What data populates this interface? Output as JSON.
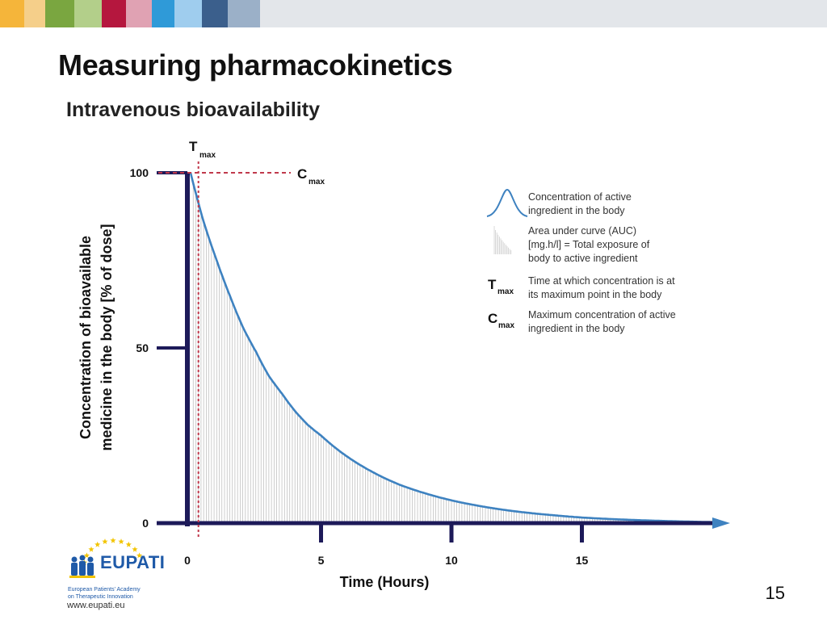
{
  "header": {
    "colors": [
      "#f5b53a",
      "#f5cf8a",
      "#7aa640",
      "#b3cf8a",
      "#b5173e",
      "#e0a2b3",
      "#2f9ad8",
      "#9fcdee",
      "#3b5f8c",
      "#9bb0c8",
      "#e3e6ea"
    ]
  },
  "slide": {
    "title": "Measuring pharmacokinetics",
    "subtitle": "Intravenous bioavailability",
    "page_number": "15"
  },
  "logo": {
    "name": "EUPATI",
    "line1": "European Patients' Academy",
    "line2": "on Therapeutic Innovation",
    "url": "www.eupati.eu",
    "star_color": "#f2c400",
    "brand_color": "#1f5aa8"
  },
  "chart_data": {
    "type": "area",
    "x": [
      0,
      0.5,
      1,
      1.5,
      2,
      2.5,
      3,
      3.5,
      4,
      4.5,
      5,
      6,
      7,
      8,
      9,
      10,
      11,
      12,
      13,
      14,
      15,
      16,
      17,
      18,
      19,
      20
    ],
    "y": [
      100,
      86,
      75,
      65,
      56,
      49,
      42,
      37,
      32,
      28,
      25,
      19,
      14.5,
      11,
      8.5,
      6.5,
      5,
      3.8,
      2.9,
      2.2,
      1.6,
      1.2,
      0.9,
      0.65,
      0.45,
      0.3
    ],
    "xlim": [
      0,
      20
    ],
    "ylim": [
      0,
      100
    ],
    "xticks": [
      "0",
      "5",
      "10",
      "15"
    ],
    "xtick_values": [
      0,
      5,
      10,
      15
    ],
    "yticks": [
      "0",
      "50",
      "100"
    ],
    "ytick_values": [
      0,
      50,
      100
    ],
    "xlabel": "Time (Hours)",
    "ylabel_line1": "Concentration of  bioavailable",
    "ylabel_line2": "medicine in the body [% of dose]",
    "tmax": {
      "label": "T",
      "sub": "max",
      "x": 0.3
    },
    "cmax": {
      "label": "C",
      "sub": "max",
      "y": 100
    },
    "colors": {
      "curve": "#3e82c0",
      "axis": "#1d1a59",
      "marker": "#c0394c",
      "auc": "#b9b9b9"
    },
    "legend": {
      "position": "top-right",
      "items": [
        {
          "symbol": "curve-icon",
          "text": [
            "Concentration of active",
            "ingredient in the body"
          ]
        },
        {
          "symbol": "auc-icon",
          "text": [
            "Area under curve (AUC)",
            "[mg.h/l] = Total exposure of",
            "body to active ingredient"
          ]
        },
        {
          "symbol": "tmax",
          "sym_main": "T",
          "sym_sub": "max",
          "text": [
            "Time at which concentration is at",
            "its maximum point in the body"
          ]
        },
        {
          "symbol": "cmax",
          "sym_main": "C",
          "sym_sub": "max",
          "text": [
            "Maximum concentration of active",
            "ingredient in the body"
          ]
        }
      ]
    }
  }
}
